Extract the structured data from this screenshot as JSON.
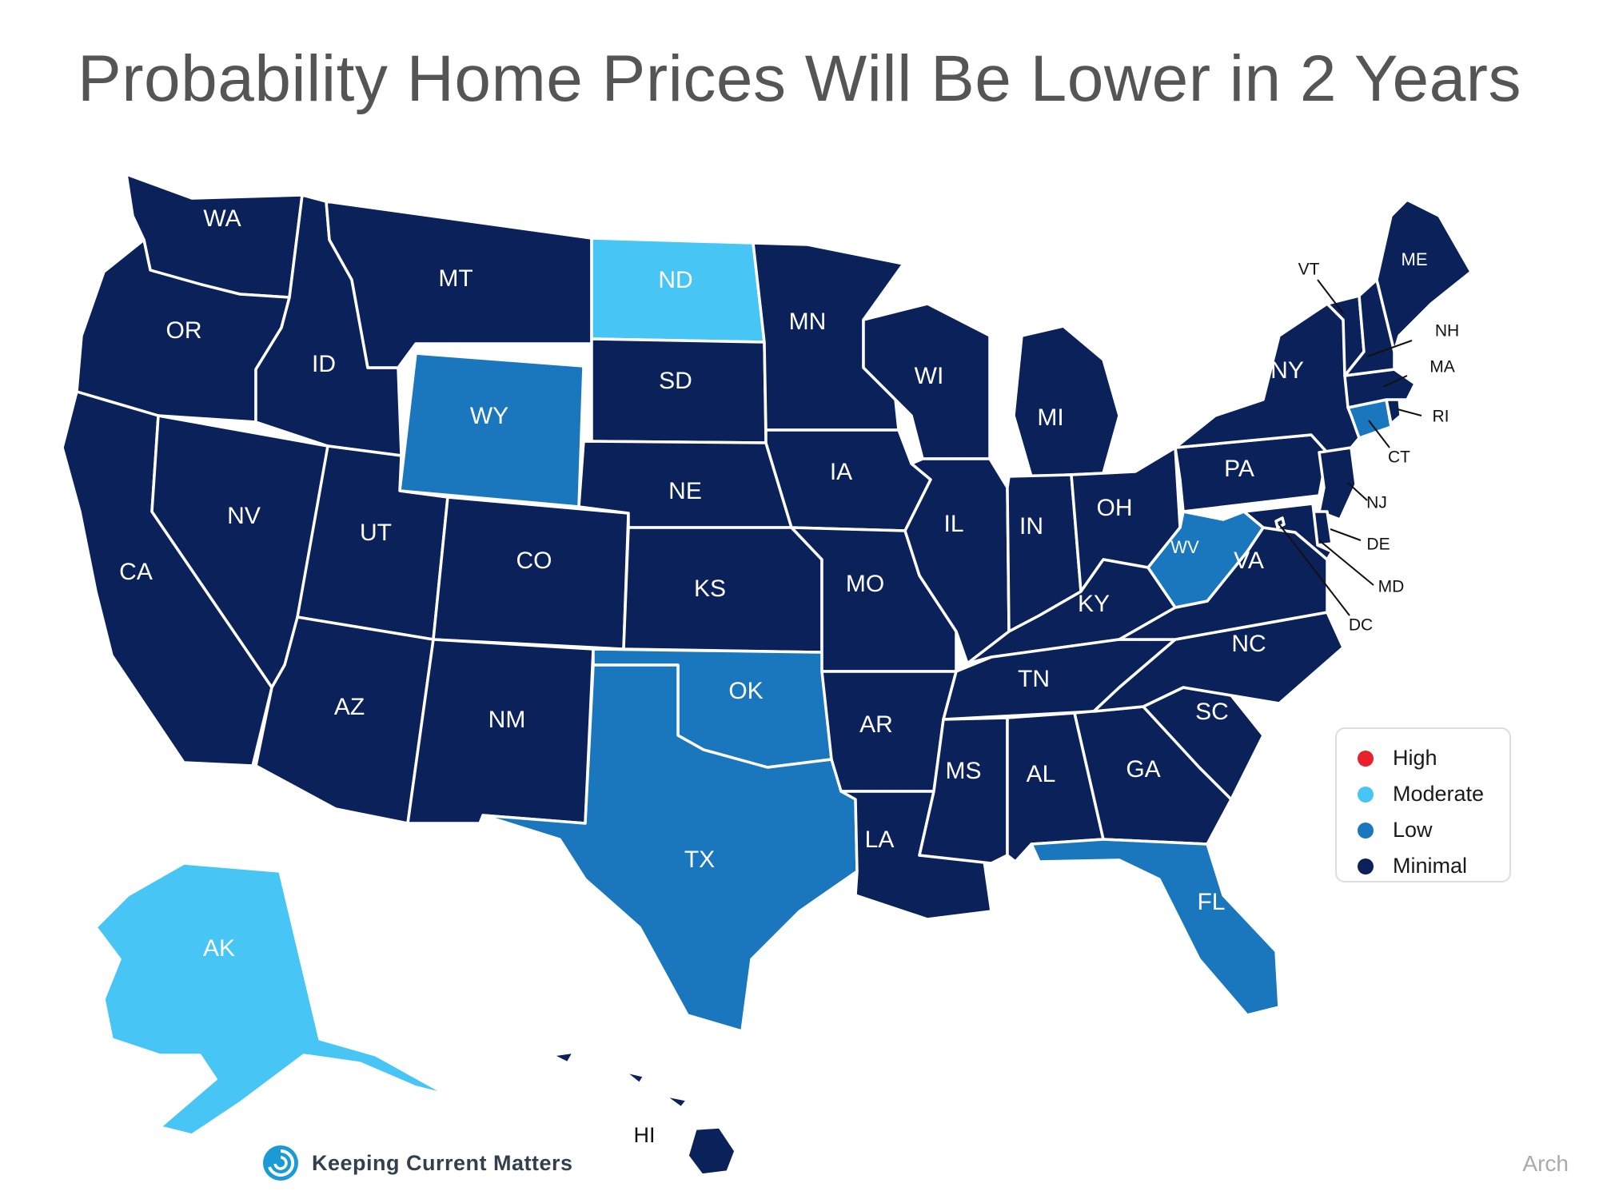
{
  "title": "Probability Home Prices Will Be Lower in 2 Years",
  "colors": {
    "high": "#e8212d",
    "moderate": "#47c6f5",
    "low": "#1a77bd",
    "minimal": "#0b215a",
    "outline": "#ffffff"
  },
  "legend": {
    "items": [
      {
        "label": "High",
        "level": "high"
      },
      {
        "label": "Moderate",
        "level": "moderate"
      },
      {
        "label": "Low",
        "level": "low"
      },
      {
        "label": "Minimal",
        "level": "minimal"
      }
    ]
  },
  "states": {
    "WA": "minimal",
    "OR": "minimal",
    "CA": "minimal",
    "NV": "minimal",
    "ID": "minimal",
    "MT": "minimal",
    "WY": "low",
    "UT": "minimal",
    "AZ": "minimal",
    "CO": "minimal",
    "NM": "minimal",
    "ND": "moderate",
    "SD": "minimal",
    "NE": "minimal",
    "KS": "minimal",
    "OK": "low",
    "TX": "low",
    "MN": "minimal",
    "IA": "minimal",
    "MO": "minimal",
    "AR": "minimal",
    "LA": "minimal",
    "WI": "minimal",
    "IL": "minimal",
    "MI": "minimal",
    "IN": "minimal",
    "OH": "minimal",
    "KY": "minimal",
    "TN": "minimal",
    "MS": "minimal",
    "AL": "minimal",
    "GA": "minimal",
    "FL": "low",
    "SC": "minimal",
    "NC": "minimal",
    "VA": "minimal",
    "WV": "low",
    "PA": "minimal",
    "NY": "minimal",
    "NJ": "minimal",
    "DE": "minimal",
    "MD": "minimal",
    "DC": "minimal",
    "CT": "low",
    "RI": "minimal",
    "MA": "minimal",
    "VT": "minimal",
    "NH": "minimal",
    "ME": "minimal",
    "AK": "moderate",
    "HI": "minimal"
  },
  "brand": "Keeping Current Matters",
  "credit": "Arch"
}
